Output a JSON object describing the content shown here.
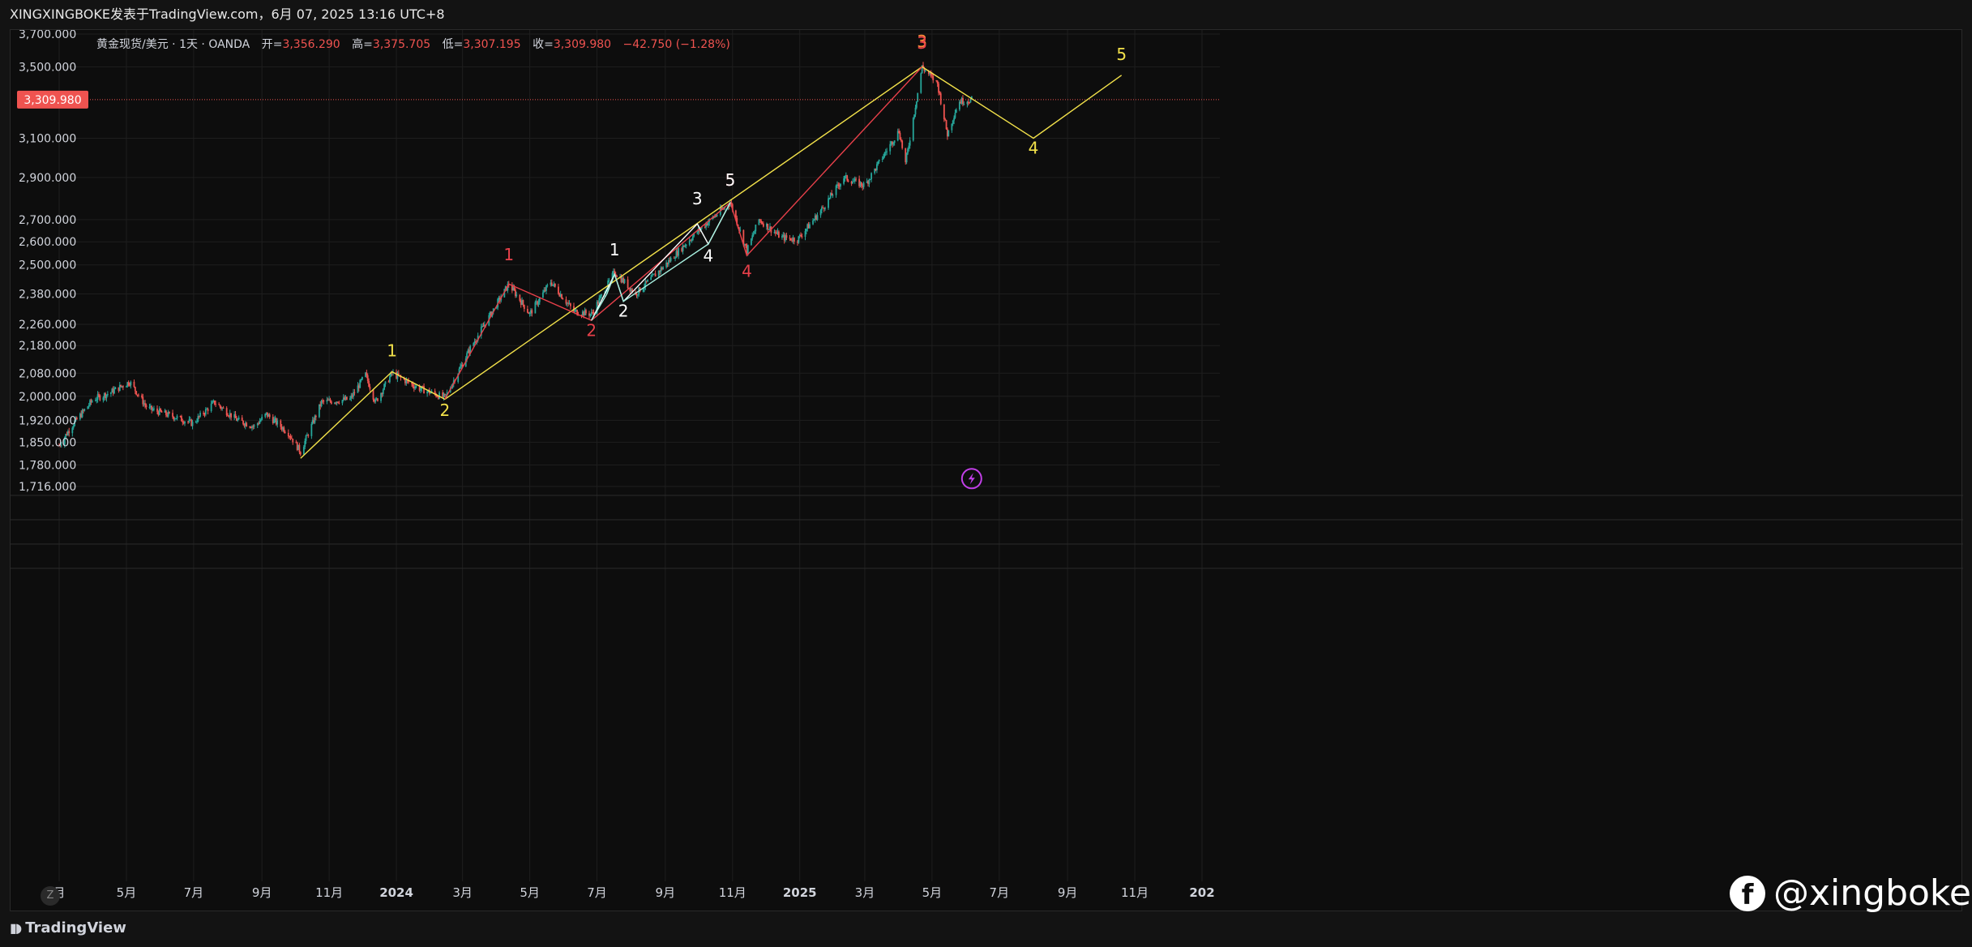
{
  "header": {
    "caption": "XINGXINGBOKE发表于TradingView.com，6月 07, 2025 13:16 UTC+8"
  },
  "legend": {
    "symbol": "黄金现货/美元 · 1天 · OANDA",
    "open_label": "开=",
    "open_value": "3,356.290",
    "high_label": "高=",
    "high_value": "3,375.705",
    "low_label": "低=",
    "low_value": "3,307.195",
    "close_label": "收=",
    "close_value": "3,309.980",
    "change": "−42.750 (−1.28%)"
  },
  "price_tag": "3,309.980",
  "footer": {
    "brand": "TradingView",
    "zoom_label": "Z"
  },
  "watermark": {
    "icon_letter": "f",
    "handle": "@xingboke"
  },
  "colors": {
    "background": "#0d0d0d",
    "grid": "#1e1e1e",
    "up": "#26a69a",
    "down": "#ef5350",
    "yellow_wave": "#f2e14a",
    "red_wave": "#e8404a",
    "white_wave": "#ffffff",
    "cyan_wave": "#a8f0e0",
    "orange_label": "#ff8c3a",
    "price_line": "#ef5350",
    "event_icon": "#c23fe8"
  },
  "chart_data": {
    "type": "candlestick",
    "x_axis": {
      "type": "date",
      "start": "2023-03-01",
      "end": "2026-01-01",
      "tick_dates": [
        "2023-03-01",
        "2023-05-01",
        "2023-07-01",
        "2023-09-01",
        "2023-11-01",
        "2024-01-01",
        "2024-03-01",
        "2024-05-01",
        "2024-07-01",
        "2024-09-01",
        "2024-11-01",
        "2025-01-01",
        "2025-03-01",
        "2025-05-01",
        "2025-07-01",
        "2025-09-01",
        "2025-11-01",
        "2026-01-01"
      ],
      "tick_labels": [
        "月",
        "5月",
        "7月",
        "9月",
        "11月",
        "2024",
        "3月",
        "5月",
        "7月",
        "9月",
        "11月",
        "2025",
        "3月",
        "5月",
        "7月",
        "9月",
        "11月",
        "202"
      ]
    },
    "y_axis": {
      "scale": "log",
      "range": [
        1700,
        3800
      ],
      "ticks": [
        1716,
        1780,
        1850,
        1920,
        2000,
        2080,
        2180,
        2260,
        2380,
        2500,
        2600,
        2700,
        2900,
        3100,
        3500,
        3700
      ],
      "tick_labels": [
        "1,716.000",
        "1,780.000",
        "1,850.000",
        "1,920.000",
        "2,000.000",
        "2,080.000",
        "2,180.000",
        "2,260.000",
        "2,380.000",
        "2,500.000",
        "2,600.000",
        "2,700.000",
        "2,900.000",
        "3,100.000",
        "3,500.000",
        "3,700.000"
      ]
    },
    "last_price": 3309.98,
    "price_path": [
      {
        "date": "2023-03-01",
        "price": 1840
      },
      {
        "date": "2023-03-12",
        "price": 1900
      },
      {
        "date": "2023-04-01",
        "price": 1990
      },
      {
        "date": "2023-04-15",
        "price": 2010
      },
      {
        "date": "2023-05-04",
        "price": 2050
      },
      {
        "date": "2023-05-20",
        "price": 1960
      },
      {
        "date": "2023-06-15",
        "price": 1930
      },
      {
        "date": "2023-06-30",
        "price": 1910
      },
      {
        "date": "2023-07-20",
        "price": 1980
      },
      {
        "date": "2023-08-10",
        "price": 1920
      },
      {
        "date": "2023-08-25",
        "price": 1900
      },
      {
        "date": "2023-09-05",
        "price": 1940
      },
      {
        "date": "2023-09-25",
        "price": 1880
      },
      {
        "date": "2023-10-06",
        "price": 1820
      },
      {
        "date": "2023-10-25",
        "price": 1980
      },
      {
        "date": "2023-11-20",
        "price": 1990
      },
      {
        "date": "2023-12-04",
        "price": 2075
      },
      {
        "date": "2023-12-13",
        "price": 1980
      },
      {
        "date": "2023-12-28",
        "price": 2080
      },
      {
        "date": "2024-01-20",
        "price": 2030
      },
      {
        "date": "2024-02-14",
        "price": 1995
      },
      {
        "date": "2024-03-08",
        "price": 2170
      },
      {
        "date": "2024-04-12",
        "price": 2420
      },
      {
        "date": "2024-05-01",
        "price": 2300
      },
      {
        "date": "2024-05-20",
        "price": 2430
      },
      {
        "date": "2024-06-10",
        "price": 2310
      },
      {
        "date": "2024-06-26",
        "price": 2300
      },
      {
        "date": "2024-07-17",
        "price": 2470
      },
      {
        "date": "2024-08-05",
        "price": 2380
      },
      {
        "date": "2024-09-01",
        "price": 2500
      },
      {
        "date": "2024-10-01",
        "price": 2650
      },
      {
        "date": "2024-10-30",
        "price": 2780
      },
      {
        "date": "2024-11-14",
        "price": 2560
      },
      {
        "date": "2024-11-25",
        "price": 2700
      },
      {
        "date": "2024-12-15",
        "price": 2620
      },
      {
        "date": "2024-12-30",
        "price": 2610
      },
      {
        "date": "2025-01-20",
        "price": 2740
      },
      {
        "date": "2025-02-10",
        "price": 2900
      },
      {
        "date": "2025-03-01",
        "price": 2860
      },
      {
        "date": "2025-04-01",
        "price": 3140
      },
      {
        "date": "2025-04-07",
        "price": 2970
      },
      {
        "date": "2025-04-22",
        "price": 3500
      },
      {
        "date": "2025-05-06",
        "price": 3400
      },
      {
        "date": "2025-05-15",
        "price": 3120
      },
      {
        "date": "2025-05-25",
        "price": 3300
      },
      {
        "date": "2025-06-06",
        "price": 3309.98
      }
    ],
    "wave_paths": [
      {
        "name": "yellow-primary",
        "color": "#f2e14a",
        "points": [
          {
            "date": "2023-10-06",
            "price": 1800
          },
          {
            "date": "2023-12-28",
            "price": 2085
          },
          {
            "date": "2024-02-14",
            "price": 1990
          },
          {
            "date": "2025-04-22",
            "price": 3500
          },
          {
            "date": "2025-08-01",
            "price": 3100
          },
          {
            "date": "2025-10-20",
            "price": 3450
          }
        ]
      },
      {
        "name": "red-intermediate",
        "color": "#e8404a",
        "points": [
          {
            "date": "2024-02-14",
            "price": 1990
          },
          {
            "date": "2024-04-12",
            "price": 2420
          },
          {
            "date": "2024-06-26",
            "price": 2275
          },
          {
            "date": "2024-10-30",
            "price": 2780
          },
          {
            "date": "2024-11-14",
            "price": 2540
          },
          {
            "date": "2025-04-22",
            "price": 3500
          }
        ]
      },
      {
        "name": "white-minor",
        "color": "#ffffff",
        "points": [
          {
            "date": "2024-06-26",
            "price": 2275
          },
          {
            "date": "2024-07-17",
            "price": 2460
          },
          {
            "date": "2024-07-25",
            "price": 2350
          },
          {
            "date": "2024-09-30",
            "price": 2680
          },
          {
            "date": "2024-10-10",
            "price": 2590
          },
          {
            "date": "2024-10-30",
            "price": 2780
          }
        ]
      },
      {
        "name": "cyan-sub",
        "color": "#a8f0e0",
        "points": [
          {
            "date": "2024-06-26",
            "price": 2275
          },
          {
            "date": "2024-07-10",
            "price": 2380
          },
          {
            "date": "2024-07-17",
            "price": 2460
          },
          {
            "date": "2024-07-25",
            "price": 2350
          },
          {
            "date": "2024-10-10",
            "price": 2590
          },
          {
            "date": "2024-10-30",
            "price": 2780
          }
        ]
      }
    ],
    "wave_labels": [
      {
        "text": "1",
        "color": "#f2e14a",
        "date": "2023-12-28",
        "price": 2140,
        "anchor": "above"
      },
      {
        "text": "2",
        "color": "#f2e14a",
        "date": "2024-02-14",
        "price": 1935,
        "anchor": "below"
      },
      {
        "text": "3",
        "color": "#ff8c3a",
        "date": "2025-04-22",
        "price": 3620,
        "anchor": "above"
      },
      {
        "text": "4",
        "color": "#f2e14a",
        "date": "2025-08-01",
        "price": 3020,
        "anchor": "below"
      },
      {
        "text": "5",
        "color": "#f2e14a",
        "date": "2025-10-20",
        "price": 3540,
        "anchor": "above"
      },
      {
        "text": "1",
        "color": "#e8404a",
        "date": "2024-04-12",
        "price": 2520,
        "anchor": "above"
      },
      {
        "text": "2",
        "color": "#e8404a",
        "date": "2024-06-26",
        "price": 2215,
        "anchor": "below"
      },
      {
        "text": "3",
        "color": "#e8404a",
        "date": "2025-04-22",
        "price": 3610,
        "anchor": "above"
      },
      {
        "text": "4",
        "color": "#e8404a",
        "date": "2024-11-14",
        "price": 2450,
        "anchor": "below"
      },
      {
        "text": "5",
        "color": "#e8404a",
        "date": "2024-10-30",
        "price": 2860,
        "anchor": "above"
      },
      {
        "text": "1",
        "color": "#ffffff",
        "date": "2024-07-17",
        "price": 2540,
        "anchor": "above"
      },
      {
        "text": "2",
        "color": "#ffffff",
        "date": "2024-07-25",
        "price": 2290,
        "anchor": "below"
      },
      {
        "text": "3",
        "color": "#ffffff",
        "date": "2024-09-30",
        "price": 2770,
        "anchor": "above"
      },
      {
        "text": "4",
        "color": "#ffffff",
        "date": "2024-10-10",
        "price": 2515,
        "anchor": "below"
      },
      {
        "text": "5",
        "color": "#ffffff",
        "date": "2024-10-30",
        "price": 2860,
        "anchor": "above"
      }
    ],
    "event_marker": {
      "date": "2025-06-06",
      "price": 1720
    }
  }
}
